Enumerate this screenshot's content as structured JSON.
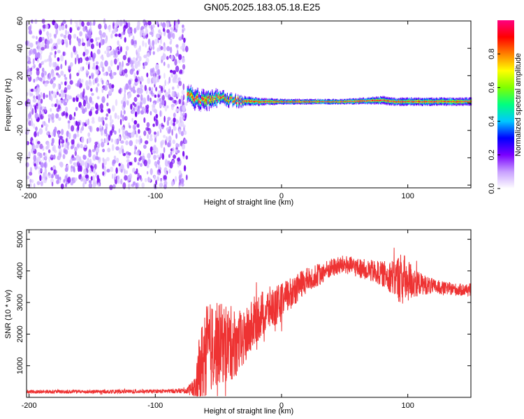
{
  "title": "GN05.2025.183.05.18.E25",
  "chart_data": [
    {
      "type": "heatmap",
      "xlabel": "Height of straight line (km)",
      "ylabel": "Frequency (Hz)",
      "xlim": [
        -202,
        150
      ],
      "ylim": [
        -62,
        60
      ],
      "xticks": [
        -200,
        -100,
        0,
        100
      ],
      "yticks": [
        -60,
        -40,
        -20,
        0,
        20,
        40,
        60
      ],
      "tick_labels_x": [
        "-200",
        "-100",
        "0",
        "100"
      ],
      "tick_labels_y": [
        "-60",
        "-40",
        "-20",
        "0",
        "20",
        "40",
        "60"
      ],
      "noise_region": {
        "x_range": [
          -202,
          -75
        ],
        "y_range": [
          -62,
          60
        ],
        "description": "uniform low-amplitude noise"
      },
      "signal_track": [
        {
          "x": -75,
          "center_hz": 8,
          "halfwidth_hz": 6
        },
        {
          "x": -70,
          "center_hz": 3,
          "halfwidth_hz": 7
        },
        {
          "x": -60,
          "center_hz": 2,
          "halfwidth_hz": 7
        },
        {
          "x": -50,
          "center_hz": 4,
          "halfwidth_hz": 5
        },
        {
          "x": -40,
          "center_hz": 2,
          "halfwidth_hz": 4
        },
        {
          "x": -20,
          "center_hz": 1,
          "halfwidth_hz": 3
        },
        {
          "x": 0,
          "center_hz": 1,
          "halfwidth_hz": 2
        },
        {
          "x": 50,
          "center_hz": 1,
          "halfwidth_hz": 2
        },
        {
          "x": 80,
          "center_hz": 2,
          "halfwidth_hz": 3
        },
        {
          "x": 90,
          "center_hz": 1,
          "halfwidth_hz": 3
        },
        {
          "x": 100,
          "center_hz": 1,
          "halfwidth_hz": 3
        },
        {
          "x": 150,
          "center_hz": 1,
          "halfwidth_hz": 3
        }
      ],
      "colorbar": {
        "label": "Normalized spectral amplitude",
        "range": [
          0,
          1
        ],
        "ticks": [
          0.0,
          0.2,
          0.4,
          0.6,
          0.8
        ],
        "tick_labels": [
          "0.0",
          "0.2",
          "0.4",
          "0.6",
          "0.8"
        ],
        "colormap": [
          "#ffffff",
          "#c8a0ff",
          "#7a00ff",
          "#0000ff",
          "#00c8ff",
          "#00ff80",
          "#80ff00",
          "#ffff00",
          "#ff8000",
          "#ff0000",
          "#ff0080"
        ]
      }
    },
    {
      "type": "line",
      "xlabel": "Height of straight line (km)",
      "ylabel": "SNR (10 * v/v)",
      "xlim": [
        -202,
        150
      ],
      "ylim": [
        0,
        5300
      ],
      "xticks": [
        -200,
        -100,
        0,
        100
      ],
      "yticks": [
        1000,
        2000,
        3000,
        4000,
        5000
      ],
      "tick_labels_x": [
        "-200",
        "-100",
        "0",
        "100"
      ],
      "tick_labels_y": [
        "1000",
        "2000",
        "3000",
        "4000",
        "5000"
      ],
      "color": "#ee3333",
      "series": [
        {
          "x": [
            -202,
            -150,
            -100,
            -75,
            -68,
            -65,
            -60,
            -50,
            -40,
            -30,
            -20,
            -10,
            0,
            10,
            20,
            30,
            40,
            50,
            60,
            70,
            80,
            90,
            95,
            100,
            110,
            120,
            130,
            140,
            150
          ],
          "y": [
            180,
            180,
            190,
            210,
            300,
            800,
            1500,
            1700,
            1700,
            1800,
            2500,
            2800,
            3000,
            3400,
            3700,
            3900,
            4100,
            4200,
            4100,
            4000,
            3900,
            3800,
            3750,
            3700,
            3600,
            3500,
            3450,
            3400,
            3400
          ],
          "noise_amplitude": [
            60,
            60,
            60,
            80,
            400,
            1200,
            1500,
            1300,
            1200,
            900,
            800,
            700,
            600,
            500,
            400,
            350,
            300,
            300,
            300,
            350,
            400,
            600,
            900,
            700,
            350,
            250,
            200,
            200,
            200
          ]
        }
      ]
    }
  ]
}
